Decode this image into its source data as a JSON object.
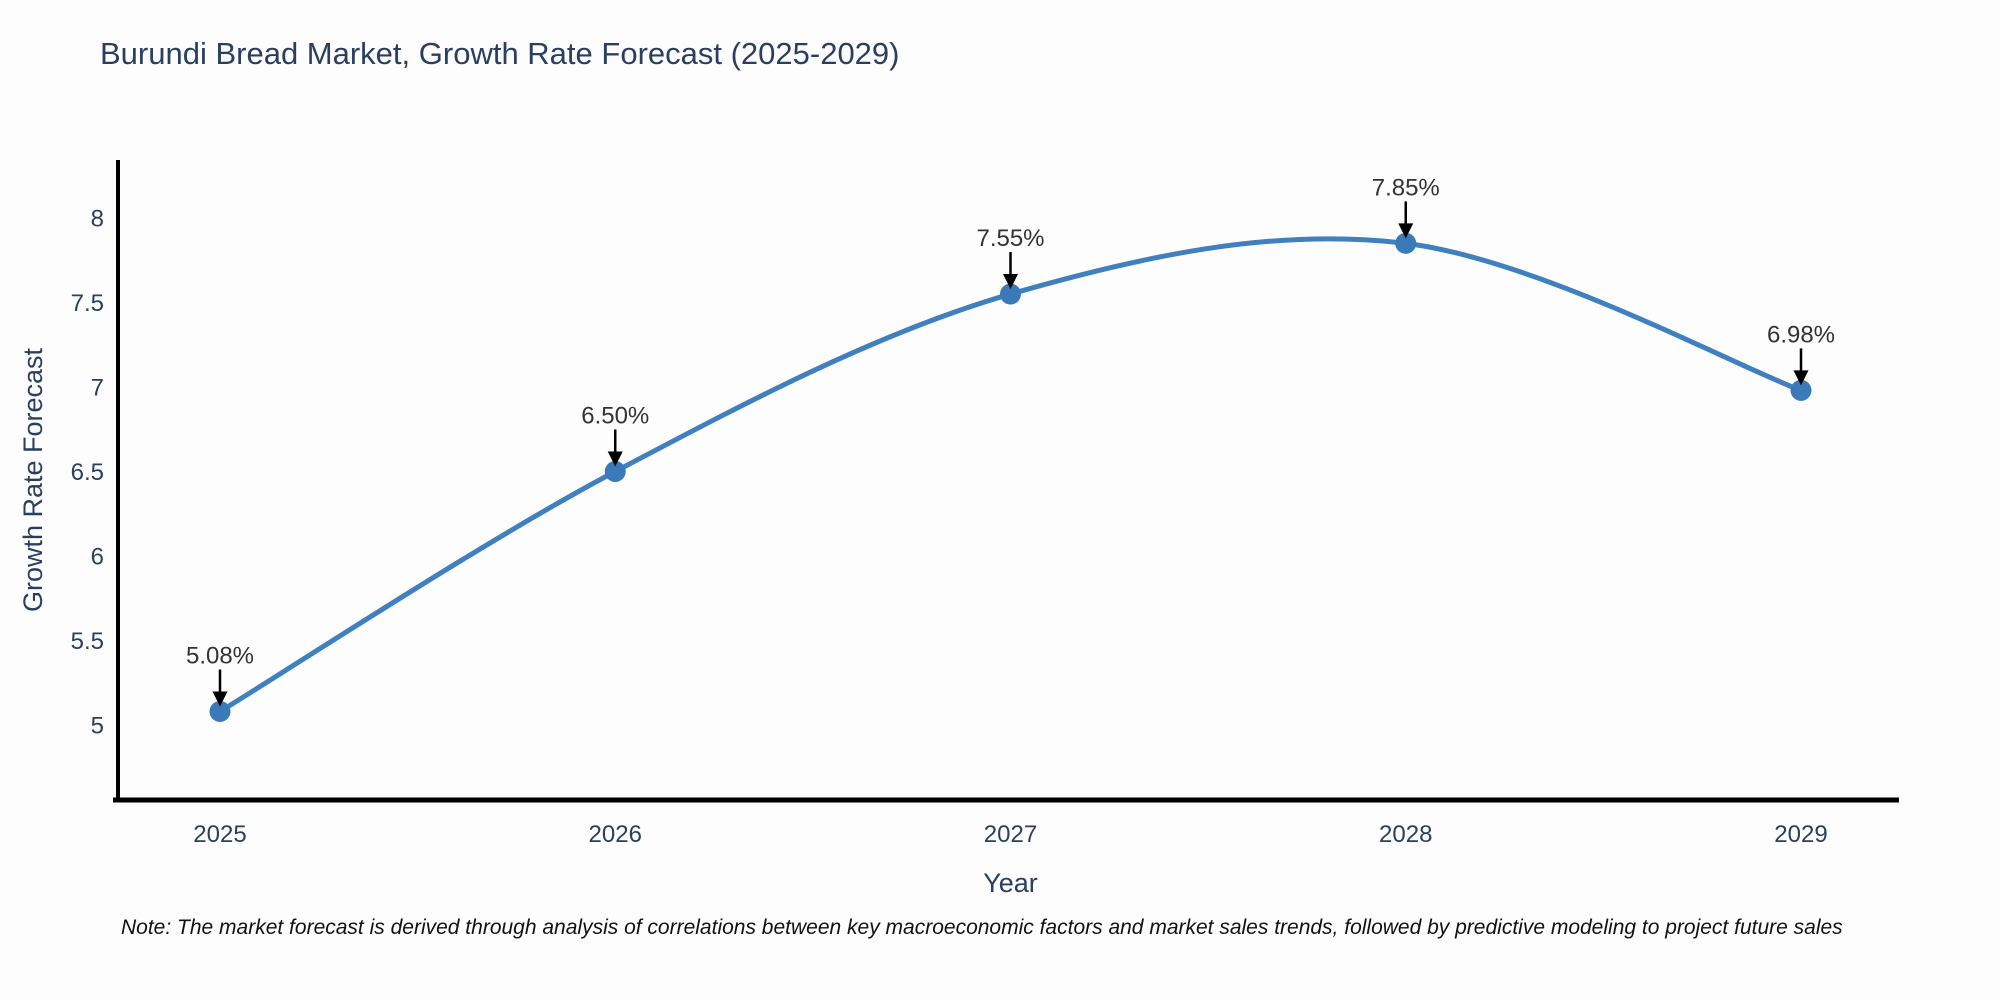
{
  "title": "Burundi Bread Market, Growth Rate Forecast (2025-2029)",
  "note": "Note: The market forecast is derived through analysis of correlations between key macroeconomic factors and market sales trends, followed by predictive modeling to project future sales",
  "chart_data": {
    "type": "line",
    "title": "Burundi Bread Market, Growth Rate Forecast (2025-2029)",
    "xlabel": "Year",
    "ylabel": "Growth Rate Forecast",
    "x": [
      2025,
      2026,
      2027,
      2028,
      2029
    ],
    "values": [
      5.08,
      6.5,
      7.55,
      7.85,
      6.98
    ],
    "point_labels": [
      "5.08%",
      "6.50%",
      "7.55%",
      "7.85%",
      "6.98%"
    ],
    "xticks": [
      "2025",
      "2026",
      "2027",
      "2028",
      "2029"
    ],
    "yticks": [
      5,
      5.5,
      6,
      6.5,
      7,
      7.5,
      8
    ],
    "ylim": [
      4.56,
      8.35
    ],
    "line_shape": "spline",
    "grid": false,
    "legend": "none",
    "annotations": "black arrows pointing down to each marker",
    "colors": {
      "line": "#4080bf",
      "marker": "#3a7ab8",
      "axis": "#000000",
      "axis_text": "#2a3f5f",
      "annotation_text": "#333333",
      "background": "#fdfdfd"
    }
  }
}
